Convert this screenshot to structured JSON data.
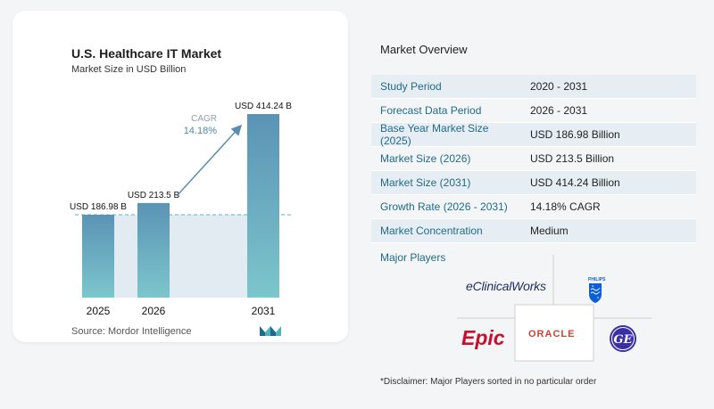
{
  "chart": {
    "title": "U.S. Healthcare IT Market",
    "subtitle": "Market Size in USD Billion",
    "cagr_label": "CAGR",
    "cagr_value": "14.18%",
    "source": "Source: Mordor Intelligence"
  },
  "chart_data": {
    "type": "bar",
    "categories": [
      "2025",
      "2026",
      "2031"
    ],
    "values": [
      186.98,
      213.5,
      414.24
    ],
    "data_labels": [
      "USD 186.98 B",
      "USD 213.5 B",
      "USD 414.24 B"
    ],
    "title": "U.S. Healthcare IT Market",
    "subtitle": "Market Size in USD Billion",
    "xlabel": "",
    "ylabel": "",
    "annotation": "CAGR 14.18%",
    "grid": false,
    "colors": {
      "bar_top": "#5b93b5",
      "bar_bottom": "#7cc6cc",
      "arrow": "#5a8db0",
      "dashed": "#79c2c8",
      "area": "#e2ebf1"
    }
  },
  "overview": {
    "title": "Market Overview",
    "rows": [
      {
        "label": "Study Period",
        "value": "2020 - 2031"
      },
      {
        "label": "Forecast Data Period",
        "value": "2026 - 2031"
      },
      {
        "label": "Base Year Market Size (2025)",
        "value": "USD 186.98 Billion"
      },
      {
        "label": "Market Size (2026)",
        "value": "USD 213.5 Billion"
      },
      {
        "label": "Market Size (2031)",
        "value": "USD 414.24 Billion"
      },
      {
        "label": "Growth Rate (2026 - 2031)",
        "value": "14.18% CAGR"
      },
      {
        "label": "Market Concentration",
        "value": "Medium"
      }
    ],
    "players_title": "Major Players",
    "players": {
      "ecw": "eClinicalWorks",
      "philips": "PHILIPS",
      "epic": "Epic",
      "oracle": "ORACLE",
      "ge": "GE"
    },
    "disclaimer": "*Disclaimer: Major Players sorted in no particular order"
  }
}
